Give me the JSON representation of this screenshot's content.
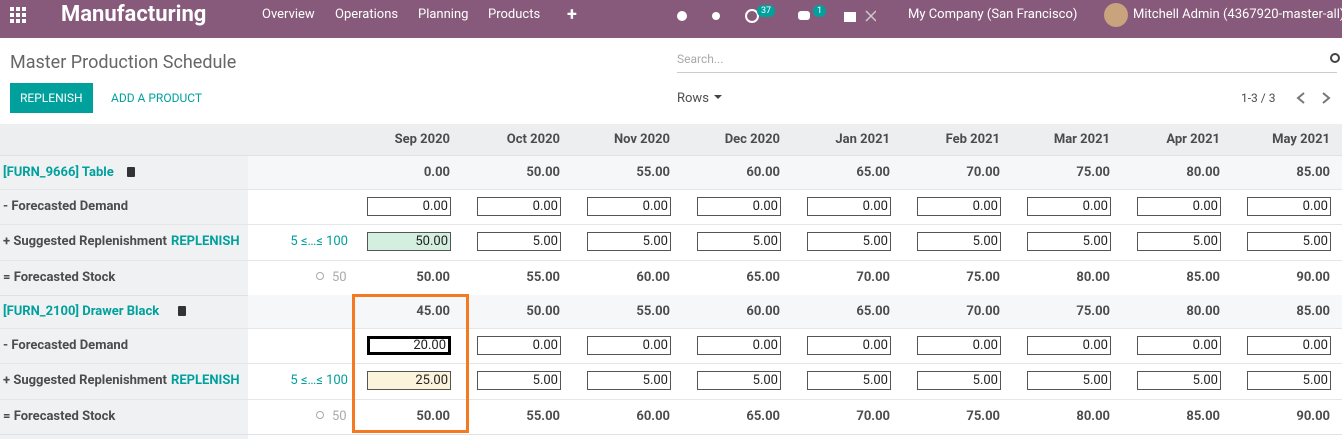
{
  "navbar": {
    "app": "Manufacturing",
    "menu": [
      "Overview",
      "Operations",
      "Planning",
      "Products",
      "+"
    ],
    "badges": [
      "37",
      "1"
    ],
    "company": "My Company (San Francisco)",
    "user": "Mitchell Admin (4367920-master-all)"
  },
  "control": {
    "title": "Master Production Schedule",
    "search_placeholder": "Search...",
    "replenish_button": "REPLENISH",
    "add_button": "ADD A PRODUCT",
    "rows_label": "Rows",
    "pager": "1-3 / 3"
  },
  "table": {
    "months": [
      "Sep 2020",
      "Oct 2020",
      "Nov 2020",
      "Dec 2020",
      "Jan 2021",
      "Feb 2021",
      "Mar 2021",
      "Apr 2021",
      "May 2021"
    ],
    "row_labels": {
      "demand": "- Forecasted Demand",
      "replenish": "+ Suggested Replenishment",
      "stock": "= Forecasted Stock"
    },
    "replenish_action": "REPLENISH",
    "products": [
      {
        "name": "[FURN_9666] Table",
        "range": "5 ≤…≤ 100",
        "safety": "50",
        "totals": [
          "0.00",
          "50.00",
          "55.00",
          "60.00",
          "65.00",
          "70.00",
          "75.00",
          "80.00",
          "85.00"
        ],
        "demand": [
          "0.00",
          "0.00",
          "0.00",
          "0.00",
          "0.00",
          "0.00",
          "0.00",
          "0.00",
          "0.00"
        ],
        "replenish": [
          "50.00",
          "5.00",
          "5.00",
          "5.00",
          "5.00",
          "5.00",
          "5.00",
          "5.00",
          "5.00"
        ],
        "stock": [
          "50.00",
          "55.00",
          "60.00",
          "65.00",
          "70.00",
          "75.00",
          "80.00",
          "85.00",
          "90.00"
        ]
      },
      {
        "name": "[FURN_2100] Drawer Black",
        "range": "5 ≤…≤ 100",
        "safety": "50",
        "totals": [
          "45.00",
          "50.00",
          "55.00",
          "60.00",
          "65.00",
          "70.00",
          "75.00",
          "80.00",
          "85.00"
        ],
        "demand": [
          "20.00",
          "0.00",
          "0.00",
          "0.00",
          "0.00",
          "0.00",
          "0.00",
          "0.00",
          "0.00"
        ],
        "replenish": [
          "25.00",
          "5.00",
          "5.00",
          "5.00",
          "5.00",
          "5.00",
          "5.00",
          "5.00",
          "5.00"
        ],
        "stock": [
          "50.00",
          "55.00",
          "60.00",
          "65.00",
          "70.00",
          "75.00",
          "80.00",
          "85.00",
          "90.00"
        ]
      }
    ]
  }
}
